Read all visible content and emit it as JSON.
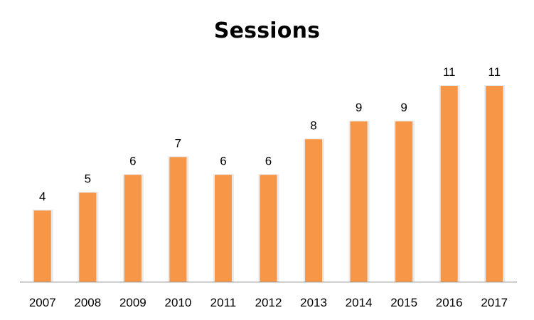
{
  "chart_data": {
    "type": "bar",
    "title": "Sessions",
    "xlabel": "",
    "ylabel": "",
    "categories": [
      "2007",
      "2008",
      "2009",
      "2010",
      "2011",
      "2012",
      "2013",
      "2014",
      "2015",
      "2016",
      "2017"
    ],
    "values": [
      4,
      5,
      6,
      7,
      6,
      6,
      8,
      9,
      9,
      11,
      11
    ],
    "ylim": [
      0,
      11
    ],
    "grid": false,
    "legend": "none",
    "data_labels": true,
    "bar_color": "#F79646",
    "bar_shadow_color": "#E3E3E3",
    "axis_color": "#999999"
  }
}
